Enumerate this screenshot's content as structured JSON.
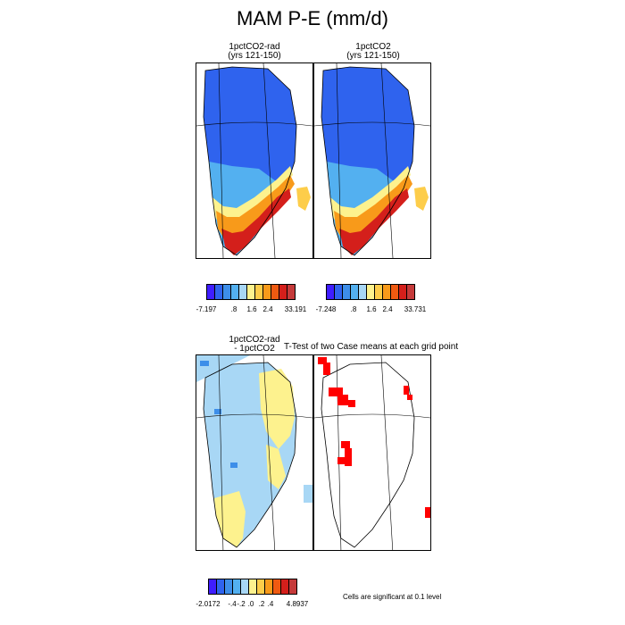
{
  "figure": {
    "title": "MAM P-E (mm/d)"
  },
  "panels": {
    "top_left": {
      "title_line1": "1pctCO2-rad",
      "title_line2": "(yrs 121-150)"
    },
    "top_right": {
      "title_line1": "1pctCO2",
      "title_line2": "(yrs 121-150)"
    },
    "bottom_left": {
      "title_line1": "1pctCO2-rad",
      "title_line2": "- 1pctCO2"
    },
    "bottom_right": {
      "title": "T-Test of two Case means at each grid point"
    }
  },
  "colorbars": {
    "cb1": {
      "colors": [
        "#3f1dff",
        "#2f63ee",
        "#3d8ee9",
        "#53b0f0",
        "#a8d7f5",
        "#fdf28e",
        "#fdcd4a",
        "#f89a1a",
        "#ef5a11",
        "#d41f1b",
        "#c53a3a"
      ],
      "labels": [
        "-7.197",
        ".8",
        "1.6",
        "2.4",
        "33.191"
      ]
    },
    "cb2": {
      "colors": [
        "#3f1dff",
        "#2f63ee",
        "#3d8ee9",
        "#53b0f0",
        "#a8d7f5",
        "#fdf28e",
        "#fdcd4a",
        "#f89a1a",
        "#ef5a11",
        "#d41f1b",
        "#c53a3a"
      ],
      "labels": [
        "-7.248",
        ".8",
        "1.6",
        "2.4",
        "33.731"
      ]
    },
    "cb3": {
      "colors": [
        "#3f1dff",
        "#2f63ee",
        "#3d8ee9",
        "#53b0f0",
        "#a8d7f5",
        "#fdf28e",
        "#fdcd4a",
        "#f89a1a",
        "#ef5a11",
        "#d41f1b",
        "#c53a3a"
      ],
      "labels": [
        "-2.0172",
        "-.4",
        "-.2",
        ".0",
        ".2",
        ".4",
        "4.8937"
      ]
    }
  },
  "significance_note": "Cells are significant at 0.1 level",
  "map_colors": {
    "deep_blue": "#2f63ee",
    "light_blue": "#53b0f0",
    "pale_blue": "#a8d7f5",
    "pale_yellow": "#fdf28e",
    "orange": "#f89a1a",
    "red": "#d41f1b",
    "dark_red": "#c53a3a",
    "significant": "#ff0000"
  }
}
